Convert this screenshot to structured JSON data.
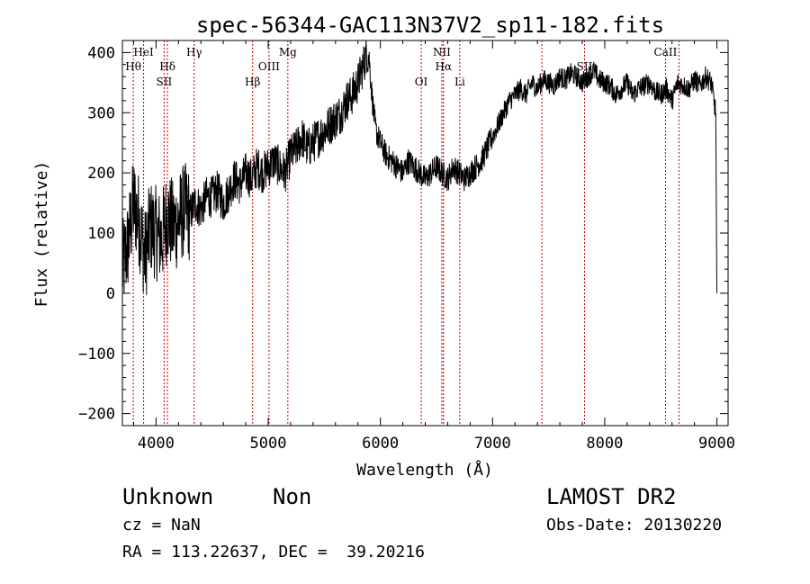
{
  "chart_data": {
    "type": "line",
    "title": "spec-56344-GAC113N37V2_sp11-182.fits",
    "xlabel": "Wavelength (Å)",
    "ylabel": "Flux (relative)",
    "xlim": [
      3700,
      9100
    ],
    "ylim": [
      -220,
      420
    ],
    "x_ticks": [
      4000,
      5000,
      6000,
      7000,
      8000,
      9000
    ],
    "y_ticks": [
      -200,
      -100,
      0,
      100,
      200,
      300,
      400
    ],
    "grid": false,
    "line_color": "#000000",
    "marker_line_color": "#c00000",
    "x": [
      3700,
      3750,
      3800,
      3850,
      3900,
      3950,
      4000,
      4050,
      4100,
      4150,
      4200,
      4250,
      4300,
      4350,
      4400,
      4450,
      4500,
      4550,
      4600,
      4650,
      4700,
      4750,
      4800,
      4850,
      4900,
      4950,
      5000,
      5050,
      5100,
      5150,
      5200,
      5250,
      5300,
      5350,
      5400,
      5450,
      5500,
      5550,
      5600,
      5650,
      5700,
      5750,
      5800,
      5850,
      5880,
      5900,
      5920,
      5940,
      5960,
      6000,
      6050,
      6100,
      6150,
      6200,
      6250,
      6300,
      6350,
      6400,
      6450,
      6500,
      6550,
      6600,
      6650,
      6700,
      6750,
      6800,
      6850,
      6900,
      6950,
      7000,
      7050,
      7100,
      7150,
      7200,
      7250,
      7300,
      7350,
      7400,
      7450,
      7500,
      7550,
      7600,
      7650,
      7700,
      7750,
      7800,
      7850,
      7900,
      7950,
      8000,
      8050,
      8100,
      8150,
      8200,
      8250,
      8300,
      8350,
      8400,
      8450,
      8500,
      8550,
      8600,
      8650,
      8700,
      8750,
      8800,
      8850,
      8900,
      8950,
      8990,
      9000
    ],
    "y": [
      40,
      80,
      150,
      120,
      60,
      110,
      100,
      90,
      130,
      110,
      120,
      140,
      130,
      150,
      140,
      160,
      160,
      170,
      150,
      170,
      190,
      180,
      200,
      190,
      210,
      200,
      210,
      220,
      210,
      200,
      230,
      240,
      260,
      240,
      250,
      260,
      270,
      280,
      290,
      300,
      320,
      330,
      350,
      380,
      400,
      390,
      340,
      300,
      270,
      250,
      230,
      220,
      210,
      200,
      220,
      210,
      200,
      190,
      200,
      210,
      200,
      190,
      210,
      200,
      190,
      200,
      210,
      220,
      240,
      260,
      280,
      300,
      320,
      330,
      340,
      330,
      350,
      340,
      355,
      350,
      345,
      360,
      355,
      365,
      360,
      350,
      360,
      370,
      355,
      350,
      345,
      330,
      340,
      350,
      330,
      340,
      345,
      350,
      335,
      330,
      340,
      320,
      350,
      345,
      340,
      355,
      345,
      360,
      350,
      300,
      0
    ],
    "line_markers": [
      {
        "label": "Hθ",
        "wavelength": 3797,
        "row": 1
      },
      {
        "label": "HeI",
        "wavelength": 3889,
        "row": 0
      },
      {
        "label": "SII",
        "wavelength": 4072,
        "row": 2
      },
      {
        "label": "Hδ",
        "wavelength": 4102,
        "row": 1
      },
      {
        "label": "Hγ",
        "wavelength": 4340,
        "row": 0
      },
      {
        "label": "Hβ",
        "wavelength": 4861,
        "row": 2
      },
      {
        "label": "OIII",
        "wavelength": 5007,
        "row": 1
      },
      {
        "label": "Mg",
        "wavelength": 5175,
        "row": 0
      },
      {
        "label": "OI",
        "wavelength": 6364,
        "row": 2
      },
      {
        "label": "NII",
        "wavelength": 6548,
        "row": 0
      },
      {
        "label": "Hα",
        "wavelength": 6563,
        "row": 1
      },
      {
        "label": "Li",
        "wavelength": 6708,
        "row": 2
      },
      {
        "label": "",
        "wavelength": 7440,
        "row": 2
      },
      {
        "label": "SII",
        "wavelength": 7820,
        "row": 1
      },
      {
        "label": "CaII",
        "wavelength": 8542,
        "row": 0
      },
      {
        "label": "",
        "wavelength": 8662,
        "row": 2
      }
    ]
  },
  "info": {
    "object_class": "Unknown",
    "object_subclass": "Non",
    "survey": "LAMOST DR2",
    "redshift": "cz = NaN",
    "obs_date": "Obs-Date: 20130220",
    "coordinates": "RA = 113.22637, DEC =  39.20216"
  }
}
